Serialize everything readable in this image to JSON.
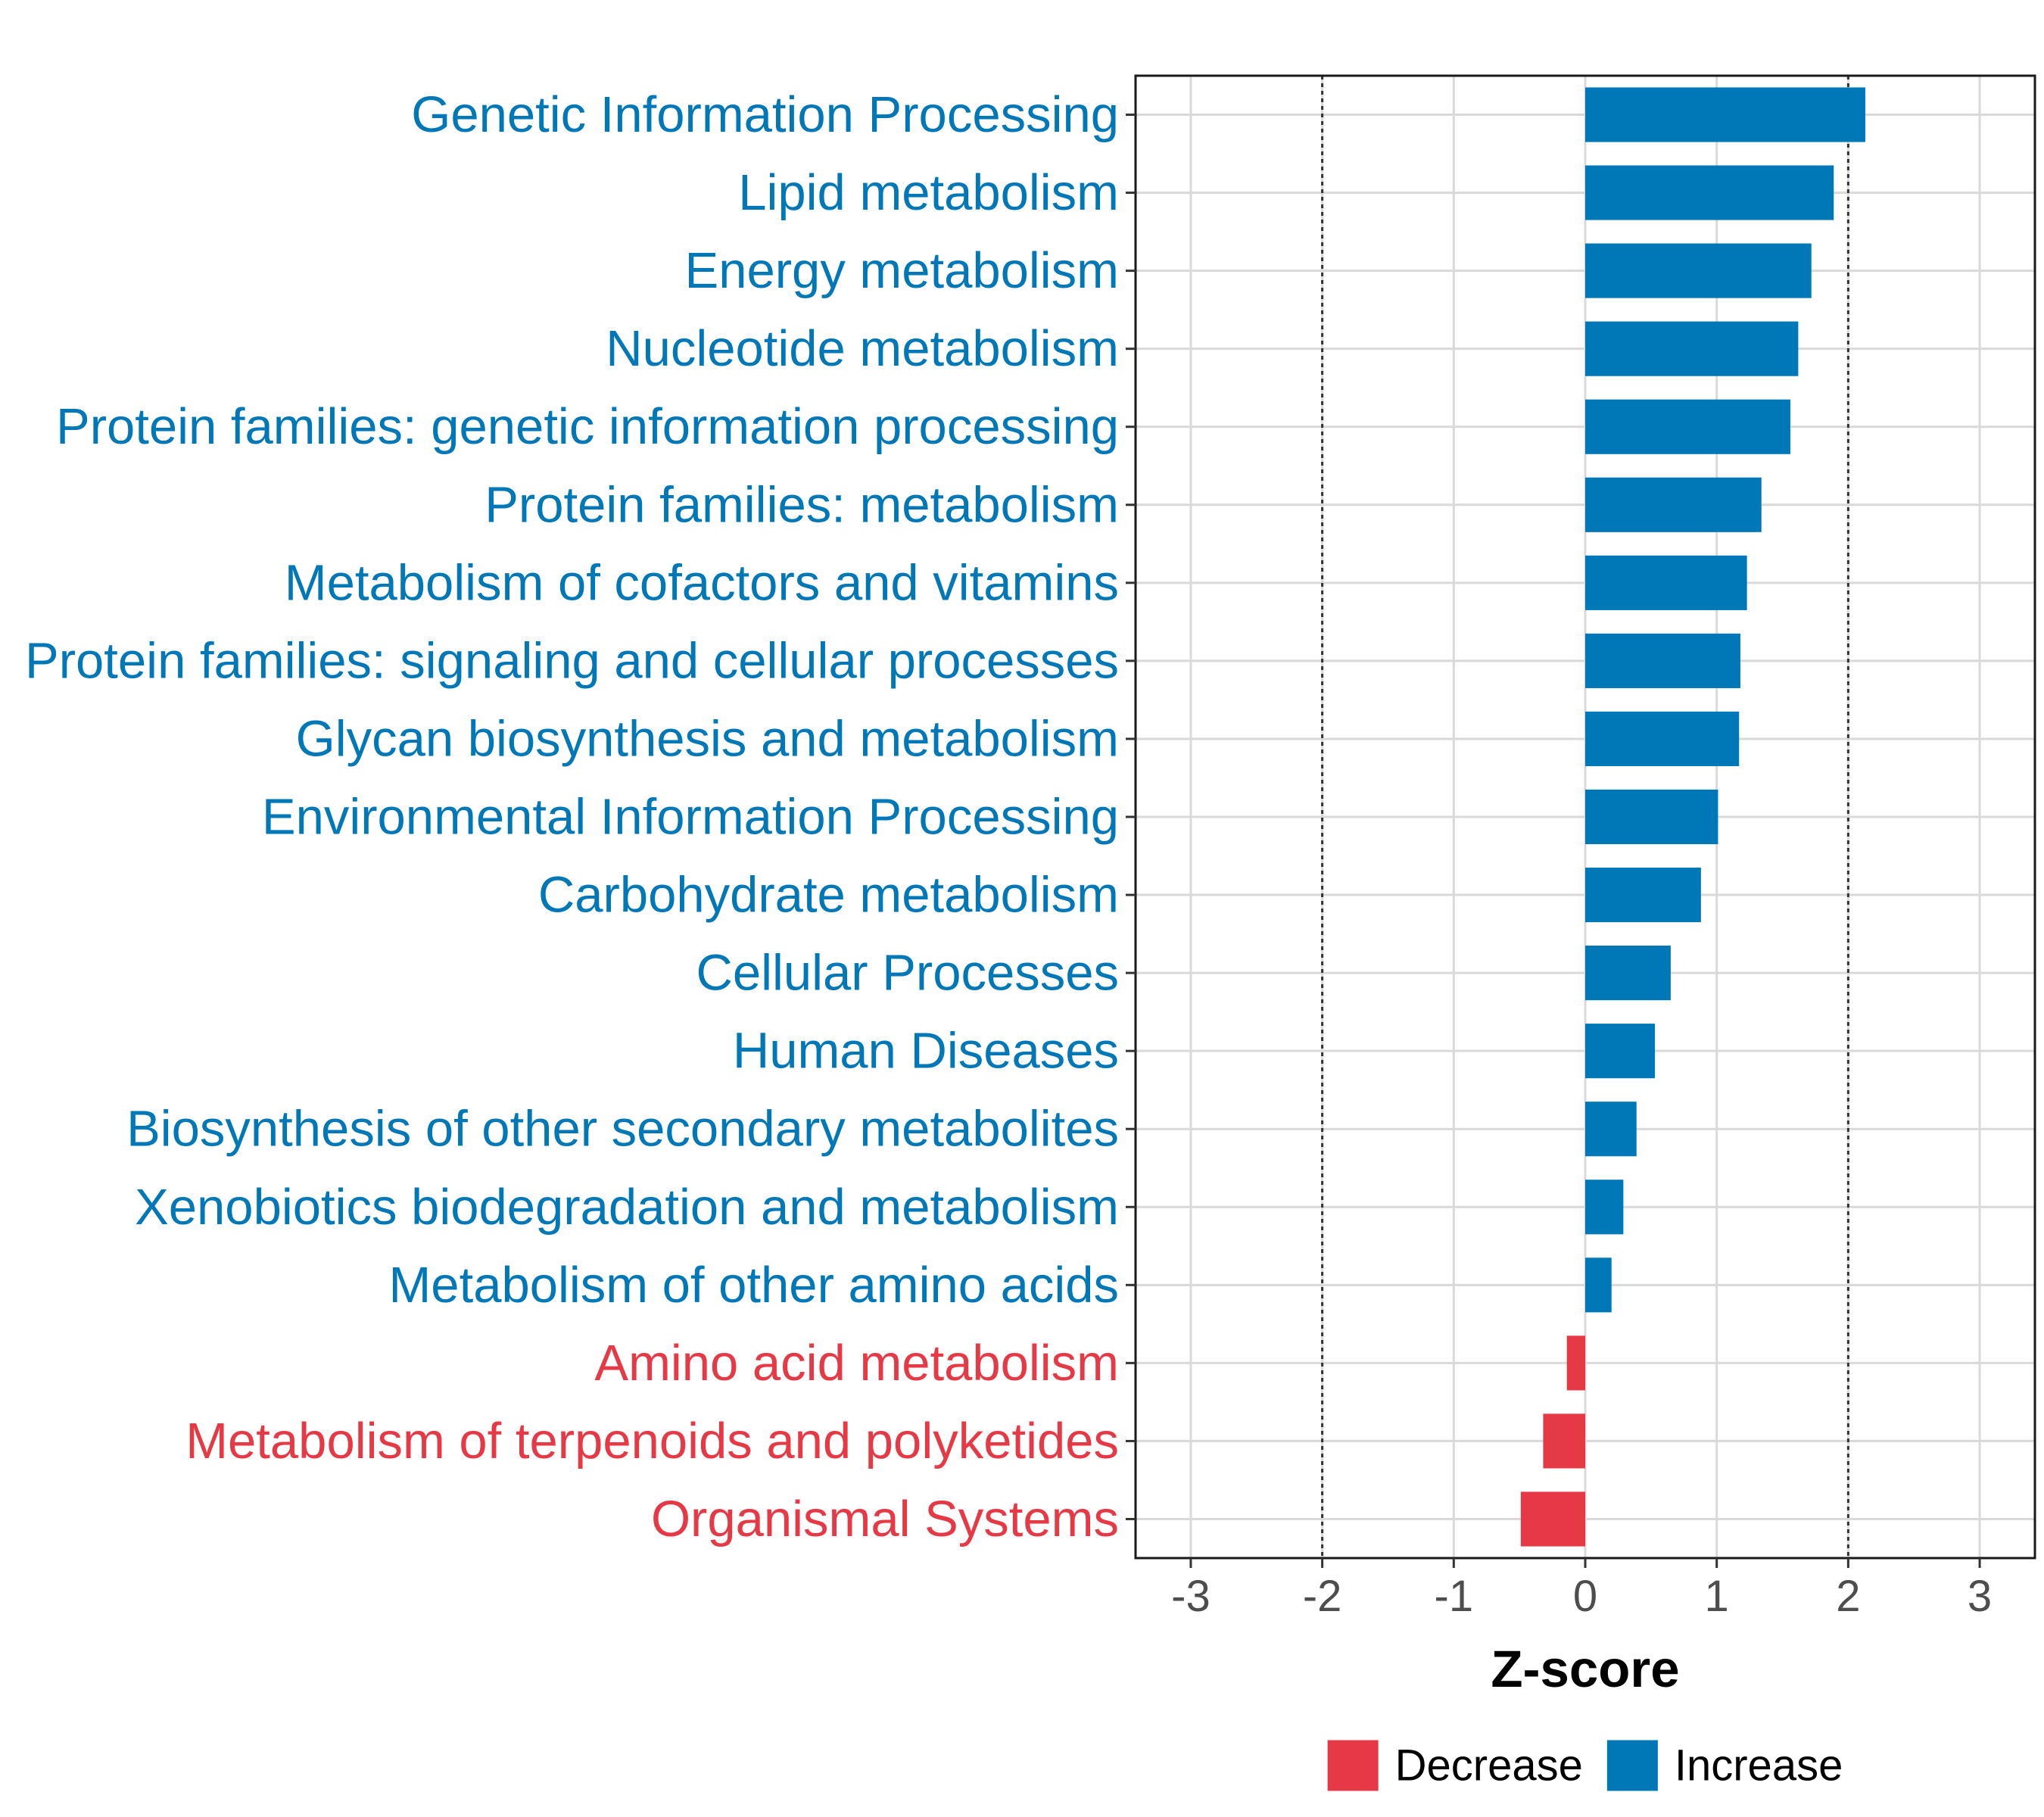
{
  "chart_data": {
    "type": "bar",
    "orientation": "horizontal",
    "categories": [
      "Genetic Information Processing",
      "Lipid metabolism",
      "Energy metabolism",
      "Nucleotide metabolism",
      "Protein families: genetic information processing",
      "Protein families: metabolism",
      "Metabolism of cofactors and vitamins",
      "Protein families: signaling and cellular processes",
      "Glycan biosynthesis and metabolism",
      "Environmental Information Processing",
      "Carbohydrate metabolism",
      "Cellular Processes",
      "Human Diseases",
      "Biosynthesis of other secondary metabolites",
      "Xenobiotics biodegradation and metabolism",
      "Metabolism of other amino acids",
      "Amino acid metabolism",
      "Metabolism of terpenoids and polyketides",
      "Organismal Systems"
    ],
    "values": [
      2.13,
      1.89,
      1.72,
      1.62,
      1.56,
      1.34,
      1.23,
      1.18,
      1.17,
      1.01,
      0.88,
      0.65,
      0.53,
      0.39,
      0.29,
      0.2,
      -0.14,
      -0.32,
      -0.49
    ],
    "groups": [
      "Increase",
      "Increase",
      "Increase",
      "Increase",
      "Increase",
      "Increase",
      "Increase",
      "Increase",
      "Increase",
      "Increase",
      "Increase",
      "Increase",
      "Increase",
      "Increase",
      "Increase",
      "Increase",
      "Decrease",
      "Decrease",
      "Decrease"
    ],
    "xlabel": "Z-score",
    "ylabel": "",
    "xlim": [
      -3.42,
      3.42
    ],
    "xticks": [
      -3,
      -2,
      -1,
      0,
      1,
      2,
      3
    ],
    "xtick_labels": [
      "-3",
      "-2",
      "-1",
      "0",
      "1",
      "2",
      "3"
    ],
    "reference_lines": [
      -2,
      2
    ],
    "grid": true,
    "legend": {
      "position": "bottom",
      "entries": [
        {
          "label": "Decrease",
          "color": "#e63946"
        },
        {
          "label": "Increase",
          "color": "#0077b6"
        }
      ]
    },
    "colors": {
      "Decrease": "#e63946",
      "Increase": "#0077b6"
    }
  }
}
